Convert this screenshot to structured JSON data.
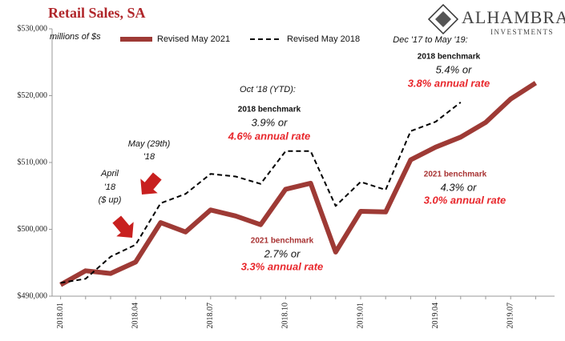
{
  "chart_data": {
    "type": "line",
    "title": "Retail Sales, SA",
    "y_unit": "millions of $s",
    "logo": {
      "name": "ALHAMBRA",
      "tagline": "INVESTMENTS"
    },
    "categories": [
      "2018.01",
      null,
      null,
      "2018.04",
      null,
      null,
      "2018.07",
      null,
      null,
      "2018.10",
      null,
      null,
      "2019.01",
      null,
      null,
      "2019.04",
      null,
      null,
      "2019.07",
      null
    ],
    "series": [
      {
        "name": "Revised May 2021",
        "color": "#9e3a35",
        "dash": false,
        "values": [
          491700,
          493800,
          493400,
          495100,
          501000,
          499600,
          502900,
          502000,
          500700,
          506000,
          506900,
          496600,
          502700,
          502600,
          510400,
          512300,
          513800,
          516000,
          519500,
          521900
        ]
      },
      {
        "name": "Revised May 2018",
        "color": "#000000",
        "dash": true,
        "values": [
          492000,
          492600,
          495900,
          497700,
          503900,
          505300,
          508300,
          507900,
          506800,
          511700,
          511700,
          503500,
          507100,
          505900,
          514700,
          516100,
          519000,
          null,
          null,
          null
        ]
      }
    ],
    "ylim": [
      490000,
      530000
    ],
    "yticks": [
      {
        "value": 490000,
        "label": "$490,000"
      },
      {
        "value": 500000,
        "label": "$500,000"
      },
      {
        "value": 510000,
        "label": "$510,000"
      },
      {
        "value": 520000,
        "label": "$520,000"
      },
      {
        "value": 530000,
        "label": "$530,000"
      }
    ],
    "grid": false,
    "legend": "top",
    "annotations": [
      {
        "lines": [
          "April",
          "'18",
          "($ up)"
        ]
      },
      {
        "lines": [
          "May (29th)",
          "'18"
        ]
      },
      {
        "lines": [
          "Oct '18 (YTD):",
          "2018 benchmark",
          "3.9% or",
          "4.6% annual rate"
        ]
      },
      {
        "lines": [
          "2021 benchmark",
          "2.7% or",
          "3.3% annual rate"
        ]
      },
      {
        "lines": [
          "Dec '17 to May '19:",
          "2018 benchmark",
          "5.4% or",
          "3.8% annual rate"
        ]
      },
      {
        "lines": [
          "2021 benchmark",
          "4.3% or",
          "3.0% annual rate"
        ]
      }
    ]
  }
}
